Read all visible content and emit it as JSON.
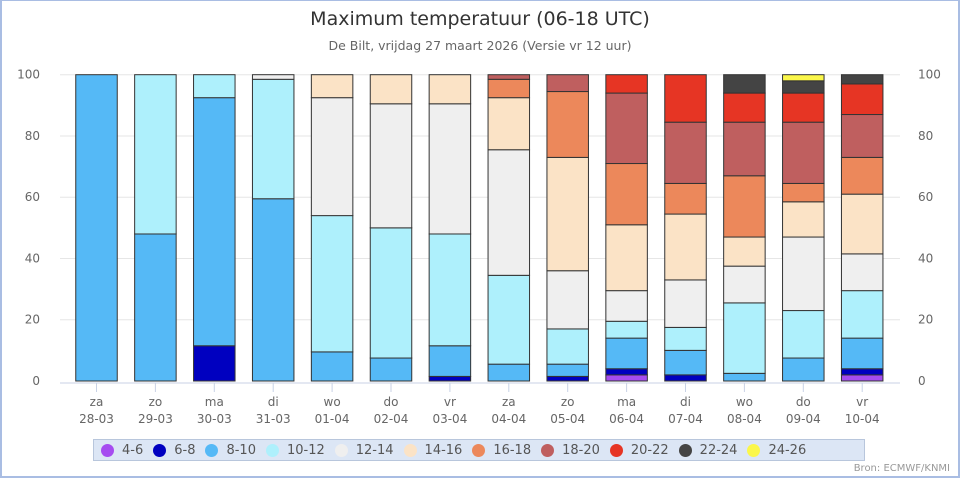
{
  "chart_data": {
    "type": "bar",
    "stacked": true,
    "title": "Maximum temperatuur (06-18 UTC)",
    "subtitle": "De Bilt, vrijdag 27 maart 2026 (Versie vr 12 uur)",
    "xlabel": "",
    "ylabel": "",
    "ylim": [
      0,
      100
    ],
    "yticks": [
      "0",
      "20",
      "40",
      "60",
      "80",
      "100"
    ],
    "grid": true,
    "legend_position": "bottom",
    "categories": [
      {
        "day": "za",
        "date": "28-03"
      },
      {
        "day": "zo",
        "date": "29-03"
      },
      {
        "day": "ma",
        "date": "30-03"
      },
      {
        "day": "di",
        "date": "31-03"
      },
      {
        "day": "wo",
        "date": "01-04"
      },
      {
        "day": "do",
        "date": "02-04"
      },
      {
        "day": "vr",
        "date": "03-04"
      },
      {
        "day": "za",
        "date": "04-04"
      },
      {
        "day": "zo",
        "date": "05-04"
      },
      {
        "day": "ma",
        "date": "06-04"
      },
      {
        "day": "di",
        "date": "07-04"
      },
      {
        "day": "wo",
        "date": "08-04"
      },
      {
        "day": "do",
        "date": "09-04"
      },
      {
        "day": "vr",
        "date": "10-04"
      }
    ],
    "series": [
      {
        "name": "4-6",
        "color": "#a64cf0",
        "values": [
          0,
          0,
          0,
          0,
          0,
          0,
          0,
          0,
          0,
          2,
          0,
          0,
          0,
          2
        ]
      },
      {
        "name": "6-8",
        "color": "#0000c0",
        "values": [
          0,
          0,
          11.5,
          0,
          0,
          0,
          1.5,
          0,
          1.5,
          2,
          2,
          0,
          0,
          2
        ]
      },
      {
        "name": "8-10",
        "color": "#55b9f6",
        "values": [
          100,
          48,
          81,
          59.5,
          9.5,
          7.5,
          10,
          5.5,
          4,
          10,
          8,
          2.5,
          7.5,
          10
        ]
      },
      {
        "name": "10-12",
        "color": "#aef0fc",
        "values": [
          0,
          52,
          7.5,
          39,
          44.5,
          42.5,
          36.5,
          29,
          11.5,
          5.5,
          7.5,
          23,
          15.5,
          15.5
        ]
      },
      {
        "name": "12-14",
        "color": "#efefef",
        "values": [
          0,
          0,
          0,
          1.5,
          38.5,
          40.5,
          42.5,
          41,
          19,
          10,
          15.5,
          12,
          24,
          12
        ]
      },
      {
        "name": "14-16",
        "color": "#fbe3c6",
        "values": [
          0,
          0,
          0,
          0,
          7.5,
          9.5,
          9.5,
          17,
          37,
          21.5,
          21.5,
          9.5,
          11.5,
          19.5
        ]
      },
      {
        "name": "16-18",
        "color": "#ec885b",
        "values": [
          0,
          0,
          0,
          0,
          0,
          0,
          0,
          6,
          21.5,
          20,
          10,
          20,
          6,
          12
        ]
      },
      {
        "name": "18-20",
        "color": "#bf5f5f",
        "values": [
          0,
          0,
          0,
          0,
          0,
          0,
          0,
          1.5,
          5.5,
          23,
          20,
          17.5,
          20,
          14
        ]
      },
      {
        "name": "20-22",
        "color": "#e63524",
        "values": [
          0,
          0,
          0,
          0,
          0,
          0,
          0,
          0,
          0,
          6,
          15.5,
          9.5,
          9.5,
          10
        ]
      },
      {
        "name": "22-24",
        "color": "#444444",
        "values": [
          0,
          0,
          0,
          0,
          0,
          0,
          0,
          0,
          0,
          0,
          0,
          6,
          4,
          3
        ]
      },
      {
        "name": "24-26",
        "color": "#fbf74a",
        "values": [
          0,
          0,
          0,
          0,
          0,
          0,
          0,
          0,
          0,
          0,
          0,
          0,
          2,
          0
        ]
      }
    ]
  },
  "credit": "Bron: ECMWF/KNMI"
}
